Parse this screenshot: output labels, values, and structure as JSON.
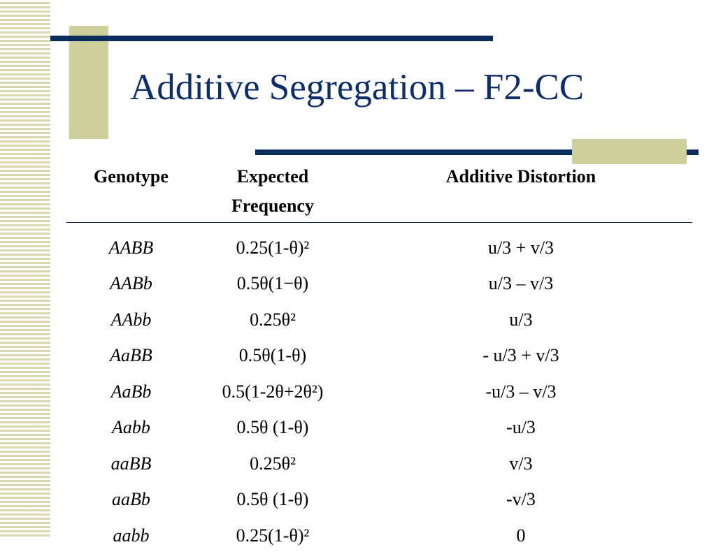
{
  "slide": {
    "title": "Additive Segregation – F2-CC"
  },
  "table": {
    "headers": {
      "genotype": "Genotype",
      "frequency_line1": "Expected",
      "frequency_line2": "Frequency",
      "distortion": "Additive Distortion"
    },
    "rows": [
      {
        "genotype": "AABB",
        "frequency": "0.25(1-θ)²",
        "distortion": "u/3 + v/3"
      },
      {
        "genotype": "AABb",
        "frequency": "0.5θ(1−θ)",
        "distortion": "u/3 – v/3"
      },
      {
        "genotype": "AAbb",
        "frequency": "0.25θ²",
        "distortion": "u/3"
      },
      {
        "genotype": "AaBB",
        "frequency": "0.5θ(1-θ)",
        "distortion": "- u/3 + v/3"
      },
      {
        "genotype": "AaBb",
        "frequency": "0.5(1-2θ+2θ²)",
        "distortion": "-u/3 – v/3"
      },
      {
        "genotype": "Aabb",
        "frequency": "0.5θ (1-θ)",
        "distortion": "-u/3"
      },
      {
        "genotype": "aaBB",
        "frequency": "0.25θ²",
        "distortion": "v/3"
      },
      {
        "genotype": "aaBb",
        "frequency": "0.5θ (1-θ)",
        "distortion": "-v/3"
      },
      {
        "genotype": "aabb",
        "frequency": "0.25(1-θ)²",
        "distortion": "0"
      }
    ]
  }
}
